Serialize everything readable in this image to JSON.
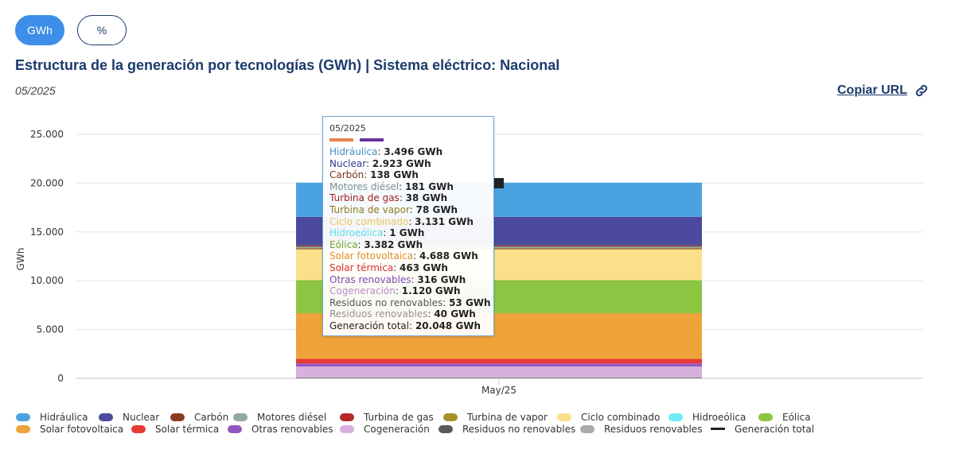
{
  "toggles": {
    "gwh": "GWh",
    "percent": "%"
  },
  "title": "Estructura de la generación por tecnologías (GWh) | Sistema eléctrico: Nacional",
  "date": "05/2025",
  "copy_url": "Copiar URL",
  "chart_data": {
    "type": "bar",
    "stacked": true,
    "categories": [
      "May/25"
    ],
    "ylabel": "GWh",
    "xlabel": "",
    "ylim": [
      0,
      25000
    ],
    "yticks": [
      "0",
      "5.000",
      "10.000",
      "15.000",
      "20.000",
      "25.000"
    ],
    "grid": true,
    "legend_position": "bottom",
    "series": [
      {
        "name": "Hidráulica",
        "value": 3496,
        "value_label": "3.496 GWh",
        "color": "#4aa3e0"
      },
      {
        "name": "Nuclear",
        "value": 2923,
        "value_label": "2.923 GWh",
        "color": "#4b4a9e"
      },
      {
        "name": "Carbón",
        "value": 138,
        "value_label": "138 GWh",
        "color": "#8b3a1f"
      },
      {
        "name": "Motores diésel",
        "value": 181,
        "value_label": "181 GWh",
        "color": "#93a8a0"
      },
      {
        "name": "Turbina de gas",
        "value": 38,
        "value_label": "38 GWh",
        "color": "#b32a2a"
      },
      {
        "name": "Turbina de vapor",
        "value": 78,
        "value_label": "78 GWh",
        "color": "#a7912c"
      },
      {
        "name": "Ciclo combinado",
        "value": 3131,
        "value_label": "3.131 GWh",
        "color": "#fbe08a"
      },
      {
        "name": "Hidroeólica",
        "value": 1,
        "value_label": "1 GWh",
        "color": "#6eecf5"
      },
      {
        "name": "Eólica",
        "value": 3382,
        "value_label": "3.382 GWh",
        "color": "#8cc541"
      },
      {
        "name": "Solar fotovoltaica",
        "value": 4688,
        "value_label": "4.688 GWh",
        "color": "#eea23a"
      },
      {
        "name": "Solar térmica",
        "value": 463,
        "value_label": "463 GWh",
        "color": "#e83a34"
      },
      {
        "name": "Otras renovables",
        "value": 316,
        "value_label": "316 GWh",
        "color": "#9656c0"
      },
      {
        "name": "Cogeneración",
        "value": 1120,
        "value_label": "1.120 GWh",
        "color": "#d7b0dd"
      },
      {
        "name": "Residuos no renovables",
        "value": 53,
        "value_label": "53 GWh",
        "color": "#5a5a5a"
      },
      {
        "name": "Residuos renovables",
        "value": 40,
        "value_label": "40 GWh",
        "color": "#a9a9a9"
      }
    ],
    "total": {
      "name": "Generación total",
      "value": 20048,
      "value_label": "20.048 GWh",
      "color": "#222222"
    }
  },
  "tooltip": {
    "date": "05/2025",
    "swatch_colors": [
      "#e8844a",
      "#6b2fa0"
    ],
    "label_colors": {
      "Hidráulica": "#3f8fcd",
      "Nuclear": "#3a3a8c",
      "Carbón": "#7a3217",
      "Motores diésel": "#7f938b",
      "Turbina de gas": "#a02222",
      "Turbina de vapor": "#8d7a1e",
      "Ciclo combinado": "#e8c75a",
      "Hidroeólica": "#55e0ea",
      "Eólica": "#72ab2c",
      "Solar fotovoltaica": "#e08f28",
      "Solar térmica": "#d92f29",
      "Otras renovables": "#8447b0",
      "Cogeneración": "#c08ac8",
      "Residuos no renovables": "#555555",
      "Residuos renovables": "#909090",
      "Generación total": "#222222"
    }
  }
}
